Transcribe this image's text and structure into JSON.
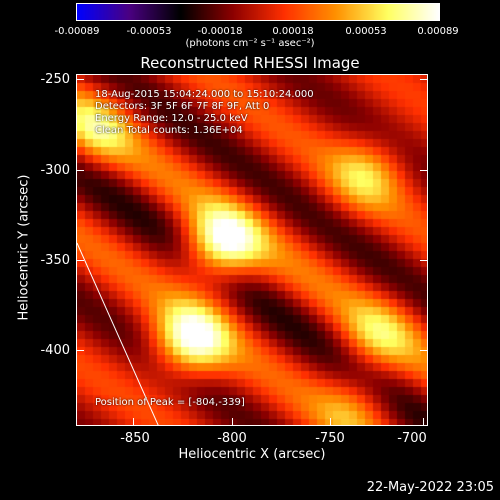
{
  "colorbar": {
    "ticks": [
      "-0.00089",
      "-0.00053",
      "-0.00018",
      "0.00018",
      "0.00053",
      "0.00089"
    ],
    "unit_label": "(photons cm⁻² s⁻¹ asec⁻²)",
    "colors": [
      "#0000ff",
      "#4b0082",
      "#000000",
      "#8b0000",
      "#ff3000",
      "#ff9000",
      "#ffff60",
      "#ffffff"
    ]
  },
  "chart_data": {
    "type": "heatmap",
    "title": "Reconstructed RHESSI Image",
    "xlabel": "Heliocentric X (arcsec)",
    "ylabel": "Heliocentric Y (arcsec)",
    "xlim": [
      -880,
      -695
    ],
    "ylim": [
      -440,
      -245
    ],
    "x_ticks": [
      "-850",
      "-800",
      "-750",
      "-700"
    ],
    "y_ticks": [
      "-250",
      "-300",
      "-350",
      "-400"
    ],
    "x_tick_values": [
      -850,
      -800,
      -750,
      -700
    ],
    "y_tick_values": [
      -250,
      -300,
      -350,
      -400
    ],
    "annotations": [
      "18-Aug-2015 15:04:24.000 to 15:10:24.000",
      "Detectors: 3F 5F 6F 7F 8F 9F, Att 0",
      "Energy Range: 12.0 - 25.0 keV",
      "Clean     Total counts: 1.36E+04"
    ],
    "peak_label": "Position of Peak = [-804,-339]",
    "peak": [
      -804,
      -339
    ],
    "value_range": [
      -0.00089,
      0.00089
    ],
    "sources": [
      {
        "x": -804,
        "y": -339,
        "peak": 0.00089
      },
      {
        "x": -820,
        "y": -392,
        "peak": 0.00085
      },
      {
        "x": -728,
        "y": -300,
        "peak": 0.00045
      },
      {
        "x": -722,
        "y": -390,
        "peak": 0.0004
      },
      {
        "x": -870,
        "y": -275,
        "peak": 0.00045
      },
      {
        "x": -735,
        "y": -430,
        "peak": 0.0003
      }
    ]
  },
  "timestamp": "22-May-2022 23:05"
}
